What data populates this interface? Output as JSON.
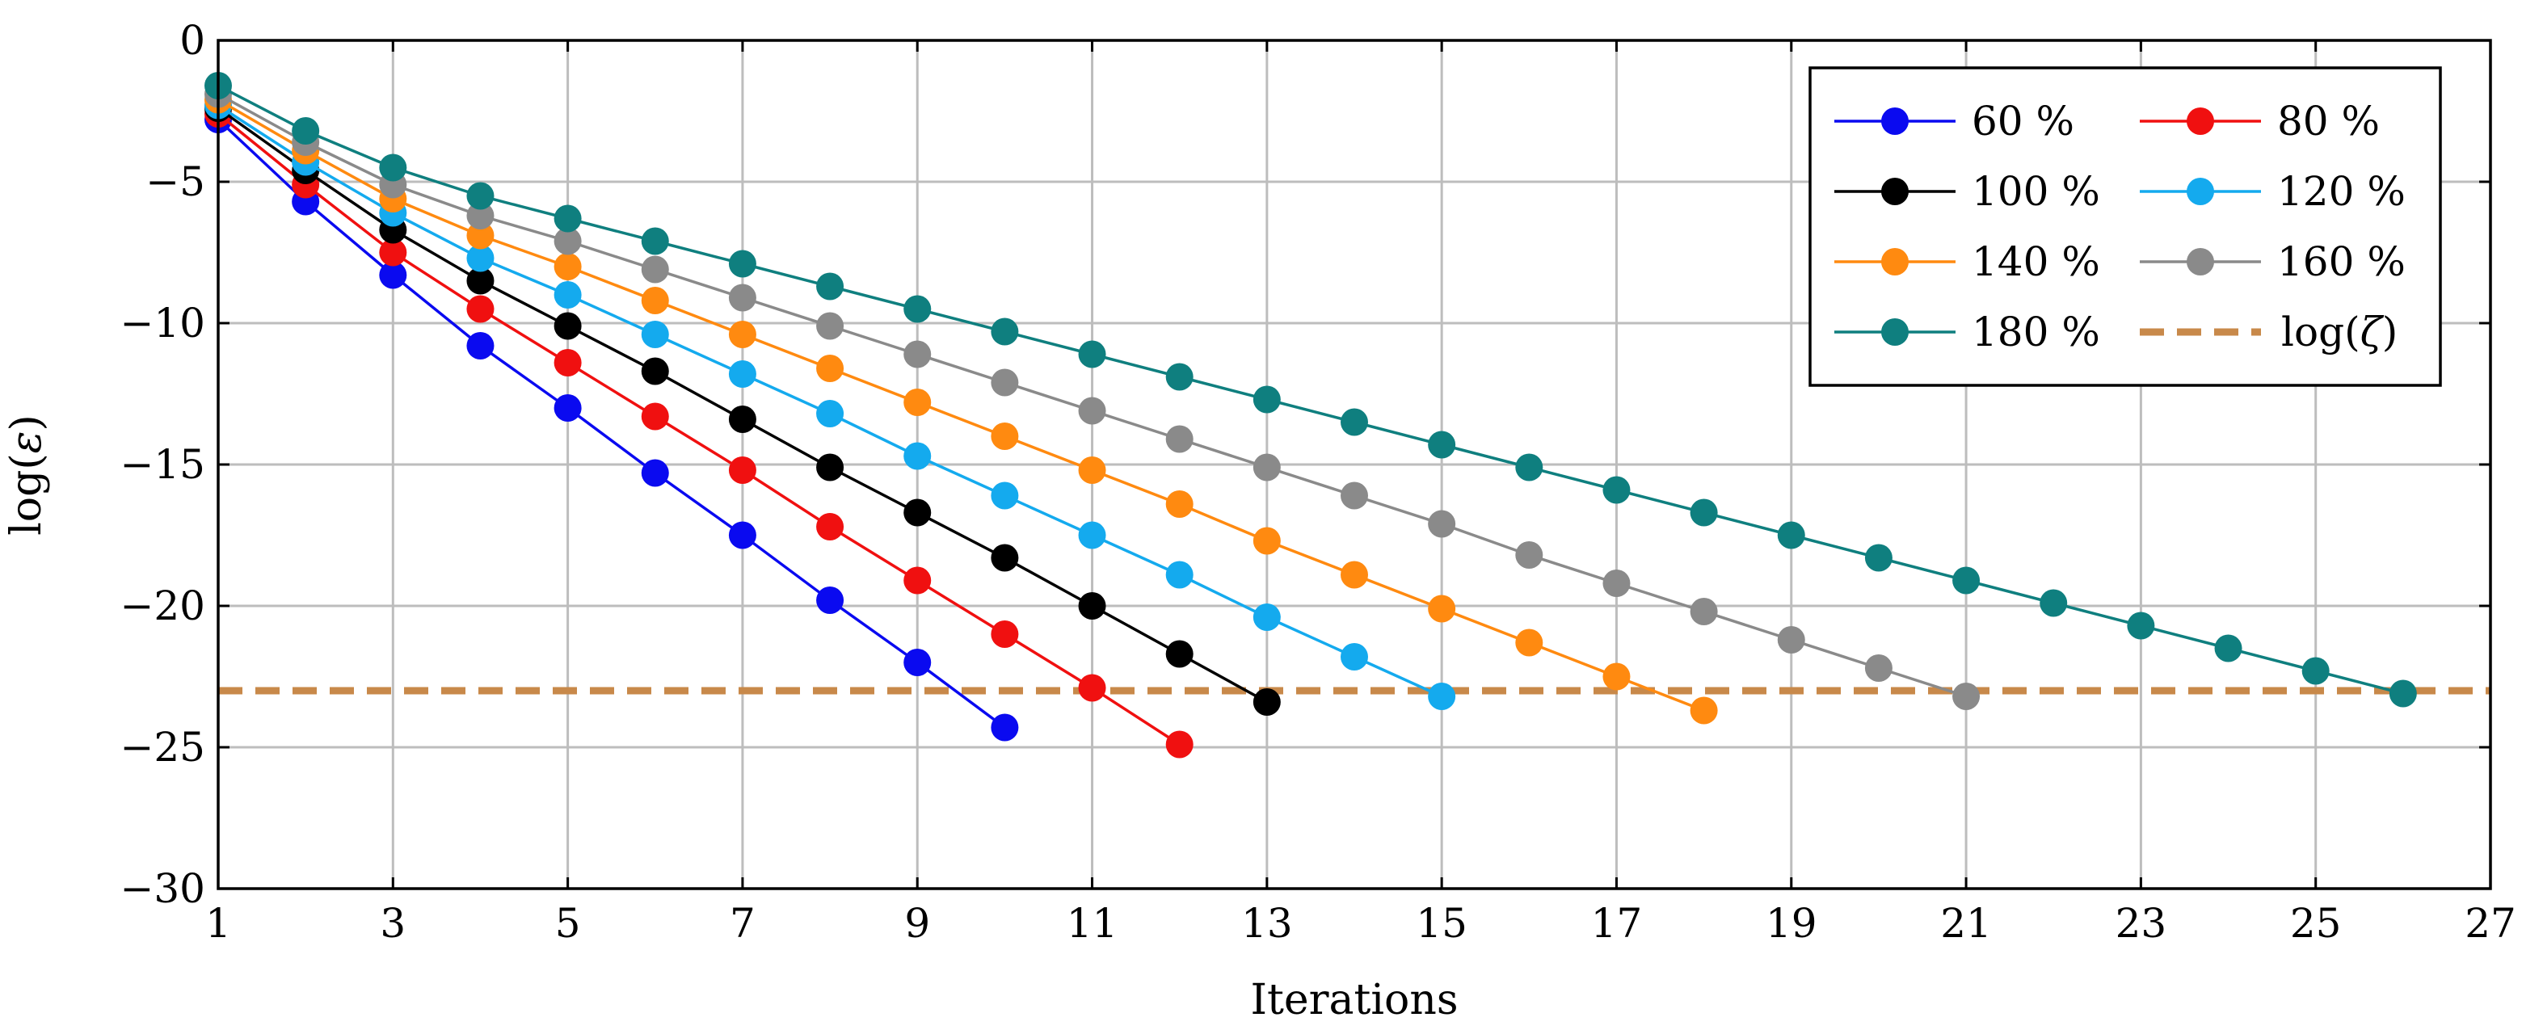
{
  "chart_data": {
    "type": "line",
    "title": "",
    "xlabel": "Iterations",
    "ylabel_prefix": "log(",
    "ylabel_symbol": "ε",
    "ylabel_suffix": ")",
    "xlim": [
      1,
      27
    ],
    "ylim": [
      -30,
      0
    ],
    "xticks": [
      1,
      3,
      5,
      7,
      9,
      11,
      13,
      15,
      17,
      19,
      21,
      23,
      25,
      27
    ],
    "yticks": [
      0,
      -5,
      -10,
      -15,
      -20,
      -25,
      -30
    ],
    "ytick_labels": [
      "0",
      "−5",
      "−10",
      "−15",
      "−20",
      "−25",
      "−30"
    ],
    "grid": true,
    "legend_position": "top-right",
    "series": [
      {
        "name": "60 %",
        "color": "#0a0af0",
        "x": [
          1,
          2,
          3,
          4,
          5,
          6,
          7,
          8,
          9,
          10
        ],
        "values": [
          -2.8,
          -5.7,
          -8.3,
          -10.8,
          -13.0,
          -15.3,
          -17.5,
          -19.8,
          -22.0,
          -24.3
        ]
      },
      {
        "name": "80 %",
        "color": "#f01010",
        "x": [
          1,
          2,
          3,
          4,
          5,
          6,
          7,
          8,
          9,
          10,
          11,
          12
        ],
        "values": [
          -2.6,
          -5.1,
          -7.5,
          -9.5,
          -11.4,
          -13.3,
          -15.2,
          -17.2,
          -19.1,
          -21.0,
          -22.9,
          -24.9
        ]
      },
      {
        "name": "100 %",
        "color": "#000000",
        "x": [
          1,
          2,
          3,
          4,
          5,
          6,
          7,
          8,
          9,
          10,
          11,
          12,
          13
        ],
        "values": [
          -2.4,
          -4.6,
          -6.7,
          -8.5,
          -10.1,
          -11.7,
          -13.4,
          -15.1,
          -16.7,
          -18.3,
          -20.0,
          -21.7,
          -23.4
        ]
      },
      {
        "name": "120 %",
        "color": "#14aaee",
        "x": [
          1,
          2,
          3,
          4,
          5,
          6,
          7,
          8,
          9,
          10,
          11,
          12,
          13,
          14,
          15
        ],
        "values": [
          -2.3,
          -4.3,
          -6.1,
          -7.7,
          -9.0,
          -10.4,
          -11.8,
          -13.2,
          -14.7,
          -16.1,
          -17.5,
          -18.9,
          -20.4,
          -21.8,
          -23.2
        ]
      },
      {
        "name": "140 %",
        "color": "#ff8a10",
        "x": [
          1,
          2,
          3,
          4,
          5,
          6,
          7,
          8,
          9,
          10,
          11,
          12,
          13,
          14,
          15,
          16,
          17,
          18
        ],
        "values": [
          -2.1,
          -3.9,
          -5.6,
          -6.9,
          -8.0,
          -9.2,
          -10.4,
          -11.6,
          -12.8,
          -14.0,
          -15.2,
          -16.4,
          -17.7,
          -18.9,
          -20.1,
          -21.3,
          -22.5,
          -23.7
        ]
      },
      {
        "name": "160 %",
        "color": "#8a8a8a",
        "x": [
          1,
          2,
          3,
          4,
          5,
          6,
          7,
          8,
          9,
          10,
          11,
          12,
          13,
          14,
          15,
          16,
          17,
          18,
          19,
          20,
          21
        ],
        "values": [
          -1.9,
          -3.6,
          -5.1,
          -6.2,
          -7.1,
          -8.1,
          -9.1,
          -10.1,
          -11.1,
          -12.1,
          -13.1,
          -14.1,
          -15.1,
          -16.1,
          -17.1,
          -18.2,
          -19.2,
          -20.2,
          -21.2,
          -22.2,
          -23.2
        ]
      },
      {
        "name": "180 %",
        "color": "#0f7f7f",
        "x": [
          1,
          2,
          3,
          4,
          5,
          6,
          7,
          8,
          9,
          10,
          11,
          12,
          13,
          14,
          15,
          16,
          17,
          18,
          19,
          20,
          21,
          22,
          23,
          24,
          25,
          26
        ],
        "values": [
          -1.6,
          -3.2,
          -4.5,
          -5.5,
          -6.3,
          -7.1,
          -7.9,
          -8.7,
          -9.5,
          -10.3,
          -11.1,
          -11.9,
          -12.7,
          -13.5,
          -14.3,
          -15.1,
          -15.9,
          -16.7,
          -17.5,
          -18.3,
          -19.1,
          -19.9,
          -20.7,
          -21.5,
          -22.3,
          -23.1
        ]
      }
    ],
    "reference_line": {
      "name_prefix": "log(",
      "name_symbol": "ζ",
      "name_suffix": ")",
      "y": -23.0,
      "color": "#c8894a",
      "style": "dashed"
    }
  }
}
